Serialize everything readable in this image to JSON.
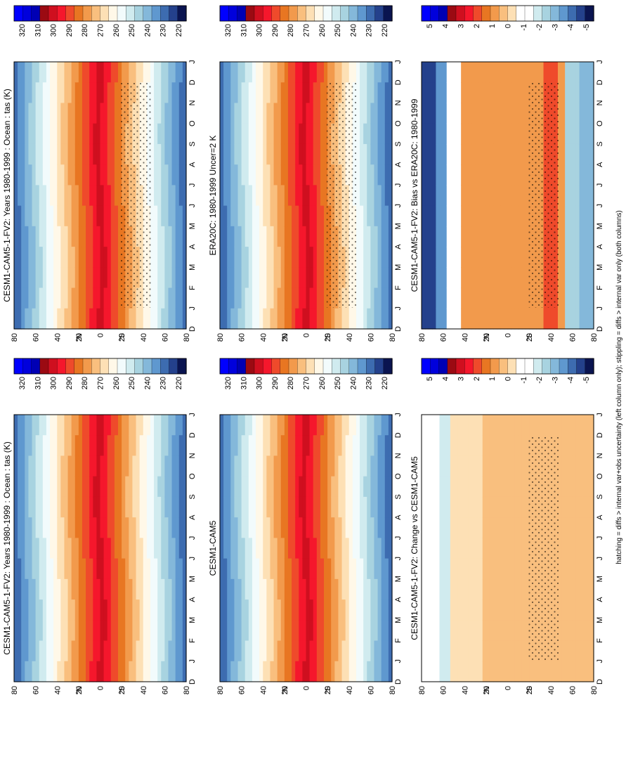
{
  "figure": {
    "footnote": "hatching = diffs > internal var+obs uncertainty (left column only); stippling = diffs > internal var only (both columns)"
  },
  "colors": {
    "abs_palette": [
      "#0a1450",
      "#24418c",
      "#3d6cb0",
      "#5f98cf",
      "#84b8da",
      "#a8d3e0",
      "#d0ebef",
      "#f2fbfc",
      "#fff8e8",
      "#fde0b5",
      "#f9bf7e",
      "#f29a4c",
      "#e87622",
      "#ef4a2b",
      "#f5172c",
      "#cf0f1f",
      "#9b0a12",
      "#0000b4",
      "#0000dc",
      "#0000ff"
    ],
    "diff_palette": [
      "#0a1450",
      "#24418c",
      "#3d6cb0",
      "#5f98cf",
      "#84b8da",
      "#a8d3e0",
      "#d0ebef",
      "#ffffff",
      "#ffffff",
      "#fde0b5",
      "#f9bf7e",
      "#f29a4c",
      "#e87622",
      "#ef4a2b",
      "#f5172c",
      "#cf0f1f",
      "#9b0a12",
      "#0000b4",
      "#0000dc",
      "#0000ff"
    ]
  },
  "chart_data": [
    {
      "id": "p1",
      "type": "heatmap",
      "title": "CESM1-CAM5-1-FV2: Years 1980-1999 : Ocean : tas (K)",
      "x_ticks": [
        "D",
        "J",
        "F",
        "M",
        "A",
        "M",
        "J",
        "J",
        "A",
        "S",
        "O",
        "N",
        "D",
        "J"
      ],
      "y_ticks": [
        "80",
        "60",
        "40",
        "20",
        "0",
        "20",
        "40",
        "60",
        "80"
      ],
      "y_hemi_labels": [
        "°N",
        "°S"
      ],
      "colorbar_labels": [
        "320",
        "310",
        "300",
        "290",
        "280",
        "270",
        "260",
        "250",
        "240",
        "230",
        "220"
      ],
      "units": "K",
      "kind": "abs"
    },
    {
      "id": "p2",
      "type": "heatmap",
      "title": "CESM1-CAM5-1-FV2: Years 1980-1999 : Ocean : tas (K)",
      "x_ticks": [
        "D",
        "J",
        "F",
        "M",
        "A",
        "M",
        "J",
        "J",
        "A",
        "S",
        "O",
        "N",
        "D",
        "J"
      ],
      "y_ticks": [
        "80",
        "60",
        "40",
        "20",
        "0",
        "20",
        "40",
        "60",
        "80"
      ],
      "y_hemi_labels": [
        "°N",
        "°S"
      ],
      "colorbar_labels": [
        "320",
        "310",
        "300",
        "290",
        "280",
        "270",
        "260",
        "250",
        "240",
        "230",
        "220"
      ],
      "units": "K",
      "kind": "abs"
    },
    {
      "id": "p3",
      "type": "heatmap",
      "title": "ERA20C: 1980-1999 Uncer=2 K",
      "x_ticks": [
        "D",
        "J",
        "F",
        "M",
        "A",
        "M",
        "J",
        "J",
        "A",
        "S",
        "O",
        "N",
        "D",
        "J"
      ],
      "y_ticks": [
        "80",
        "60",
        "40",
        "20",
        "0",
        "20",
        "40",
        "60",
        "80"
      ],
      "y_hemi_labels": [
        "°N",
        "°S"
      ],
      "colorbar_labels": [
        "320",
        "310",
        "300",
        "290",
        "280",
        "270",
        "260",
        "250",
        "240",
        "230",
        "220"
      ],
      "units": "K",
      "kind": "abs"
    },
    {
      "id": "p4",
      "type": "heatmap",
      "title": "CESM1-CAM5",
      "x_ticks": [
        "D",
        "J",
        "F",
        "M",
        "A",
        "M",
        "J",
        "J",
        "A",
        "S",
        "O",
        "N",
        "D",
        "J"
      ],
      "y_ticks": [
        "80",
        "60",
        "40",
        "20",
        "0",
        "20",
        "40",
        "60",
        "80"
      ],
      "y_hemi_labels": [
        "°N",
        "°S"
      ],
      "colorbar_labels": [
        "320",
        "310",
        "300",
        "290",
        "280",
        "270",
        "260",
        "250",
        "240",
        "230",
        "220"
      ],
      "units": "K",
      "kind": "abs"
    },
    {
      "id": "p5",
      "type": "heatmap",
      "title": "CESM1-CAM5-1-FV2: Bias vs ERA20C: 1980-1999",
      "x_ticks": [
        "D",
        "J",
        "F",
        "M",
        "A",
        "M",
        "J",
        "J",
        "A",
        "S",
        "O",
        "N",
        "D",
        "J"
      ],
      "y_ticks": [
        "80",
        "60",
        "40",
        "20",
        "0",
        "20",
        "40",
        "60",
        "80"
      ],
      "y_hemi_labels": [
        "°N",
        "°S"
      ],
      "colorbar_labels": [
        "5",
        "4",
        "3",
        "2",
        "1",
        "0",
        "-1",
        "-2",
        "-3",
        "-4",
        "-5"
      ],
      "units": "K",
      "kind": "diff"
    },
    {
      "id": "p6",
      "type": "heatmap",
      "title": "CESM1-CAM5-1-FV2: Change vs CESM1-CAM5",
      "x_ticks": [
        "D",
        "J",
        "F",
        "M",
        "A",
        "M",
        "J",
        "J",
        "A",
        "S",
        "O",
        "N",
        "D",
        "J"
      ],
      "y_ticks": [
        "80",
        "60",
        "40",
        "20",
        "0",
        "20",
        "40",
        "60",
        "80"
      ],
      "y_hemi_labels": [
        "°N",
        "°S"
      ],
      "colorbar_labels": [
        "5",
        "4",
        "3",
        "2",
        "1",
        "0",
        "-1",
        "-2",
        "-3",
        "-4",
        "-5"
      ],
      "units": "K",
      "kind": "diff"
    }
  ]
}
